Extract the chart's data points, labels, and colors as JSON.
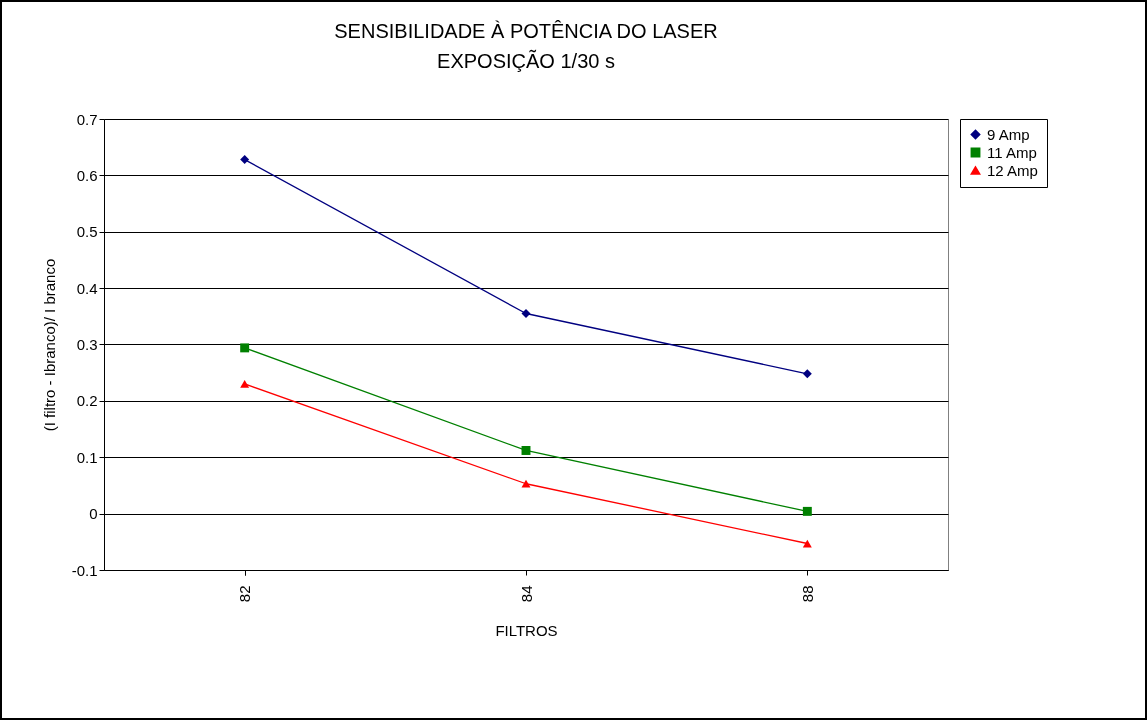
{
  "chart_data": {
    "type": "line",
    "title": "SENSIBILIDADE À POTÊNCIA DO LASER",
    "subtitle": "EXPOSIÇÃO 1/30 s",
    "xlabel": "FILTROS",
    "ylabel": "(I filtro - Ibranco)/ I branco",
    "categories": [
      "82",
      "84",
      "88"
    ],
    "series": [
      {
        "name": "9 Amp",
        "color": "#000080",
        "marker": "diamond",
        "values": [
          0.628,
          0.355,
          0.248
        ]
      },
      {
        "name": "11 Amp",
        "color": "#008000",
        "marker": "square",
        "values": [
          0.294,
          0.112,
          0.004
        ]
      },
      {
        "name": "12 Amp",
        "color": "#ff0000",
        "marker": "triangle",
        "values": [
          0.23,
          0.053,
          -0.053
        ]
      }
    ],
    "ylim": [
      -0.1,
      0.7
    ],
    "yticks": [
      -0.1,
      0,
      0.1,
      0.2,
      0.3,
      0.4,
      0.5,
      0.6,
      0.7
    ],
    "grid": "y",
    "legend": "right",
    "line_style": "solid"
  }
}
